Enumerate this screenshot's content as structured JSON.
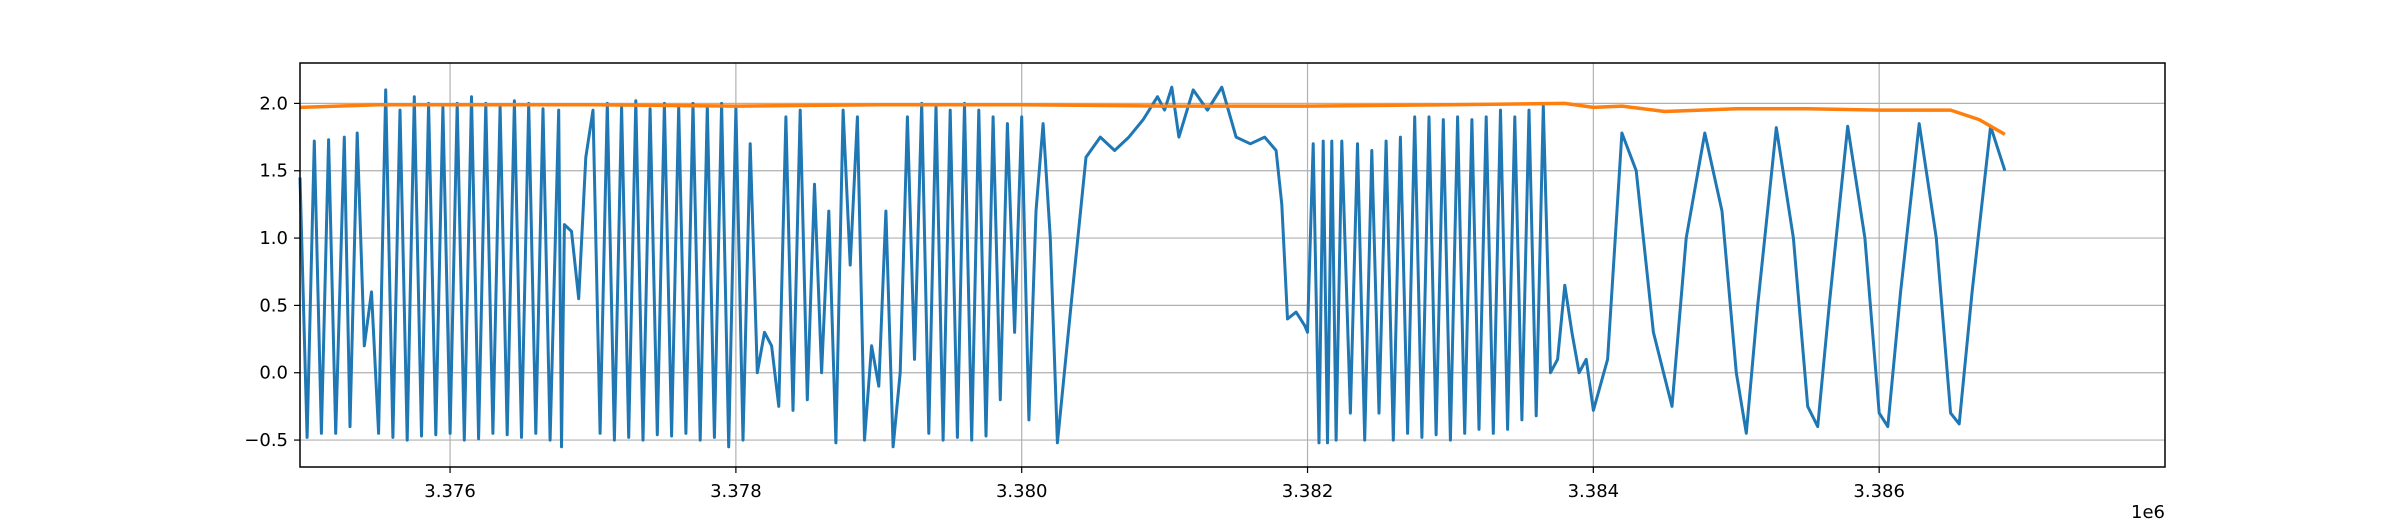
{
  "chart_data": {
    "type": "line",
    "title": "",
    "xlabel": "",
    "ylabel": "",
    "x_offset_text": "1e6",
    "xlim": [
      3374950,
      3388000
    ],
    "ylim": [
      -0.7,
      2.3
    ],
    "grid": true,
    "x_ticks": [
      {
        "value": 3376000,
        "label": "3.376"
      },
      {
        "value": 3378000,
        "label": "3.378"
      },
      {
        "value": 3380000,
        "label": "3.380"
      },
      {
        "value": 3382000,
        "label": "3.382"
      },
      {
        "value": 3384000,
        "label": "3.384"
      },
      {
        "value": 3386000,
        "label": "3.386"
      }
    ],
    "y_ticks": [
      {
        "value": -0.5,
        "label": "−0.5"
      },
      {
        "value": 0.0,
        "label": "0.0"
      },
      {
        "value": 0.5,
        "label": "0.5"
      },
      {
        "value": 1.0,
        "label": "1.0"
      },
      {
        "value": 1.5,
        "label": "1.5"
      },
      {
        "value": 2.0,
        "label": "2.0"
      }
    ],
    "series": [
      {
        "color": "#1f77b4",
        "description_points": [
          [
            3374950,
            1.45
          ],
          [
            3375000,
            -0.48
          ],
          [
            3375050,
            1.72
          ],
          [
            3375100,
            -0.45
          ],
          [
            3375150,
            1.73
          ],
          [
            3375200,
            -0.45
          ],
          [
            3375260,
            1.75
          ],
          [
            3375300,
            -0.4
          ],
          [
            3375350,
            1.78
          ],
          [
            3375400,
            0.2
          ],
          [
            3375450,
            0.6
          ],
          [
            3375500,
            -0.45
          ],
          [
            3375550,
            2.1
          ],
          [
            3375600,
            -0.48
          ],
          [
            3375650,
            1.95
          ],
          [
            3375700,
            -0.5
          ],
          [
            3375750,
            2.05
          ],
          [
            3375800,
            -0.47
          ],
          [
            3375850,
            2.0
          ],
          [
            3375900,
            -0.46
          ],
          [
            3375950,
            1.97
          ],
          [
            3376000,
            -0.45
          ],
          [
            3376050,
            2.0
          ],
          [
            3376100,
            -0.5
          ],
          [
            3376150,
            2.05
          ],
          [
            3376200,
            -0.49
          ],
          [
            3376250,
            2.0
          ],
          [
            3376300,
            -0.45
          ],
          [
            3376350,
            1.98
          ],
          [
            3376400,
            -0.46
          ],
          [
            3376450,
            2.02
          ],
          [
            3376500,
            -0.48
          ],
          [
            3376550,
            2.0
          ],
          [
            3376600,
            -0.45
          ],
          [
            3376650,
            1.96
          ],
          [
            3376700,
            -0.5
          ],
          [
            3376760,
            1.95
          ],
          [
            3376780,
            -0.55
          ],
          [
            3376800,
            1.1
          ],
          [
            3376850,
            1.05
          ],
          [
            3376900,
            0.55
          ],
          [
            3376950,
            1.6
          ],
          [
            3377000,
            1.95
          ],
          [
            3377050,
            -0.45
          ],
          [
            3377100,
            2.0
          ],
          [
            3377150,
            -0.5
          ],
          [
            3377200,
            1.98
          ],
          [
            3377250,
            -0.48
          ],
          [
            3377300,
            2.02
          ],
          [
            3377350,
            -0.5
          ],
          [
            3377400,
            1.96
          ],
          [
            3377450,
            -0.46
          ],
          [
            3377500,
            2.0
          ],
          [
            3377550,
            -0.47
          ],
          [
            3377600,
            1.98
          ],
          [
            3377650,
            -0.45
          ],
          [
            3377700,
            2.0
          ],
          [
            3377750,
            -0.5
          ],
          [
            3377800,
            1.98
          ],
          [
            3377850,
            -0.48
          ],
          [
            3377900,
            2.0
          ],
          [
            3377950,
            -0.55
          ],
          [
            3378000,
            1.97
          ],
          [
            3378050,
            -0.5
          ],
          [
            3378100,
            1.7
          ],
          [
            3378150,
            0.0
          ],
          [
            3378200,
            0.3
          ],
          [
            3378250,
            0.2
          ],
          [
            3378300,
            -0.25
          ],
          [
            3378350,
            1.9
          ],
          [
            3378400,
            -0.28
          ],
          [
            3378450,
            1.95
          ],
          [
            3378500,
            -0.2
          ],
          [
            3378550,
            1.4
          ],
          [
            3378600,
            0.0
          ],
          [
            3378650,
            1.2
          ],
          [
            3378700,
            -0.52
          ],
          [
            3378750,
            1.95
          ],
          [
            3378800,
            0.8
          ],
          [
            3378850,
            1.9
          ],
          [
            3378900,
            -0.5
          ],
          [
            3378950,
            0.2
          ],
          [
            3379000,
            -0.1
          ],
          [
            3379050,
            1.2
          ],
          [
            3379100,
            -0.55
          ],
          [
            3379150,
            0.0
          ],
          [
            3379200,
            1.9
          ],
          [
            3379250,
            0.1
          ],
          [
            3379300,
            2.0
          ],
          [
            3379350,
            -0.45
          ],
          [
            3379400,
            1.98
          ],
          [
            3379450,
            -0.5
          ],
          [
            3379500,
            1.95
          ],
          [
            3379550,
            -0.48
          ],
          [
            3379600,
            2.0
          ],
          [
            3379650,
            -0.5
          ],
          [
            3379700,
            1.95
          ],
          [
            3379750,
            -0.47
          ],
          [
            3379800,
            1.9
          ],
          [
            3379850,
            -0.2
          ],
          [
            3379900,
            1.85
          ],
          [
            3379950,
            0.3
          ],
          [
            3380000,
            1.9
          ],
          [
            3380050,
            -0.35
          ],
          [
            3380100,
            1.2
          ],
          [
            3380150,
            1.85
          ],
          [
            3380200,
            1.0
          ],
          [
            3380250,
            -0.52
          ],
          [
            3380350,
            0.55
          ],
          [
            3380450,
            1.6
          ],
          [
            3380550,
            1.75
          ],
          [
            3380650,
            1.65
          ],
          [
            3380750,
            1.75
          ],
          [
            3380850,
            1.88
          ],
          [
            3380950,
            2.05
          ],
          [
            3381000,
            1.95
          ],
          [
            3381050,
            2.12
          ],
          [
            3381100,
            1.75
          ],
          [
            3381200,
            2.1
          ],
          [
            3381300,
            1.95
          ],
          [
            3381400,
            2.12
          ],
          [
            3381500,
            1.75
          ],
          [
            3381600,
            1.7
          ],
          [
            3381700,
            1.75
          ],
          [
            3381780,
            1.65
          ],
          [
            3381820,
            1.25
          ],
          [
            3381860,
            0.4
          ],
          [
            3381920,
            0.45
          ],
          [
            3381980,
            0.35
          ],
          [
            3382000,
            0.3
          ],
          [
            3382040,
            1.7
          ],
          [
            3382080,
            -0.52
          ],
          [
            3382110,
            1.72
          ],
          [
            3382140,
            -0.52
          ],
          [
            3382170,
            1.72
          ],
          [
            3382200,
            -0.5
          ],
          [
            3382240,
            1.72
          ],
          [
            3382300,
            -0.3
          ],
          [
            3382350,
            1.7
          ],
          [
            3382400,
            -0.5
          ],
          [
            3382450,
            1.65
          ],
          [
            3382500,
            -0.3
          ],
          [
            3382550,
            1.72
          ],
          [
            3382600,
            -0.5
          ],
          [
            3382650,
            1.75
          ],
          [
            3382700,
            -0.45
          ],
          [
            3382750,
            1.9
          ],
          [
            3382800,
            -0.48
          ],
          [
            3382850,
            1.9
          ],
          [
            3382900,
            -0.46
          ],
          [
            3382950,
            1.88
          ],
          [
            3383000,
            -0.5
          ],
          [
            3383050,
            1.9
          ],
          [
            3383100,
            -0.45
          ],
          [
            3383150,
            1.88
          ],
          [
            3383200,
            -0.42
          ],
          [
            3383250,
            1.9
          ],
          [
            3383300,
            -0.45
          ],
          [
            3383350,
            1.95
          ],
          [
            3383400,
            -0.42
          ],
          [
            3383450,
            1.9
          ],
          [
            3383500,
            -0.35
          ],
          [
            3383550,
            1.95
          ],
          [
            3383600,
            -0.32
          ],
          [
            3383650,
            1.98
          ],
          [
            3383700,
            0.0
          ],
          [
            3383750,
            0.1
          ],
          [
            3383800,
            0.65
          ],
          [
            3383850,
            0.3
          ],
          [
            3383900,
            0.0
          ],
          [
            3383950,
            0.1
          ],
          [
            3384000,
            -0.28
          ],
          [
            3384100,
            0.1
          ],
          [
            3384200,
            1.78
          ],
          [
            3384300,
            1.5
          ],
          [
            3384420,
            0.3
          ],
          [
            3384550,
            -0.25
          ],
          [
            3384650,
            1.0
          ],
          [
            3384780,
            1.78
          ],
          [
            3384900,
            1.2
          ],
          [
            3385000,
            0.0
          ],
          [
            3385070,
            -0.45
          ],
          [
            3385150,
            0.5
          ],
          [
            3385280,
            1.82
          ],
          [
            3385400,
            1.0
          ],
          [
            3385500,
            -0.25
          ],
          [
            3385570,
            -0.4
          ],
          [
            3385650,
            0.5
          ],
          [
            3385780,
            1.83
          ],
          [
            3385900,
            1.0
          ],
          [
            3386000,
            -0.3
          ],
          [
            3386060,
            -0.4
          ],
          [
            3386150,
            0.6
          ],
          [
            3386280,
            1.85
          ],
          [
            3386400,
            1.0
          ],
          [
            3386500,
            -0.3
          ],
          [
            3386560,
            -0.38
          ],
          [
            3386650,
            0.6
          ],
          [
            3386780,
            1.83
          ],
          [
            3386880,
            1.5
          ]
        ]
      },
      {
        "color": "#ff7f0e",
        "description_points": [
          [
            3374950,
            1.97
          ],
          [
            3375500,
            1.99
          ],
          [
            3376000,
            1.99
          ],
          [
            3377000,
            1.99
          ],
          [
            3378000,
            1.98
          ],
          [
            3379000,
            1.99
          ],
          [
            3380000,
            1.99
          ],
          [
            3381000,
            1.98
          ],
          [
            3382000,
            1.98
          ],
          [
            3383000,
            1.99
          ],
          [
            3383800,
            2.0
          ],
          [
            3384000,
            1.97
          ],
          [
            3384200,
            1.98
          ],
          [
            3384500,
            1.94
          ],
          [
            3385000,
            1.96
          ],
          [
            3385500,
            1.96
          ],
          [
            3386000,
            1.95
          ],
          [
            3386500,
            1.95
          ],
          [
            3386700,
            1.88
          ],
          [
            3386880,
            1.77
          ]
        ]
      }
    ]
  }
}
